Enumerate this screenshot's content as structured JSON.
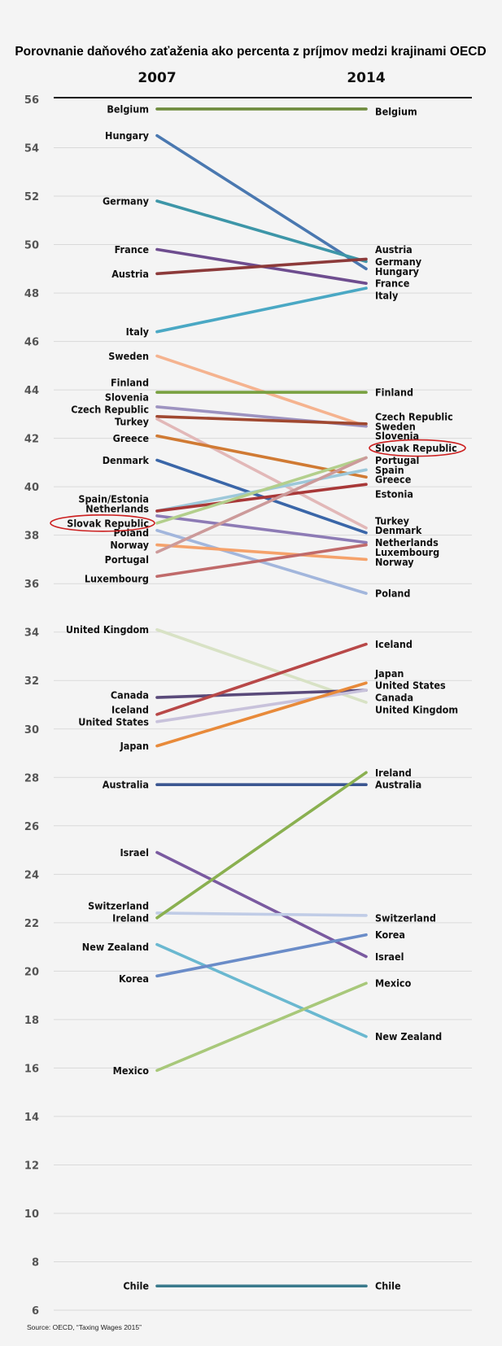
{
  "chart_data": {
    "type": "slope",
    "title": "Porovnanie daňového zaťaženia ako percenta z príjmov medzi krajinami OECD",
    "columns": [
      "2007",
      "2014"
    ],
    "ylim": [
      6,
      56
    ],
    "yticks": [
      56,
      54,
      52,
      50,
      48,
      46,
      44,
      42,
      40,
      38,
      36,
      34,
      32,
      30,
      28,
      26,
      24,
      22,
      20,
      18,
      16,
      14,
      12,
      10,
      8,
      6
    ],
    "grid": true,
    "source": "Source: OECD, “Taxing Wages 2015”",
    "highlight": "Slovak Republic",
    "series": [
      {
        "name": "Belgium",
        "values": [
          55.6,
          55.6
        ],
        "color": "#6e8b3d"
      },
      {
        "name": "Hungary",
        "values": [
          54.5,
          49.0
        ],
        "color": "#4a78b0"
      },
      {
        "name": "Germany",
        "values": [
          51.8,
          49.3
        ],
        "color": "#3d96a8"
      },
      {
        "name": "France",
        "values": [
          49.8,
          48.4
        ],
        "color": "#6e4d8f"
      },
      {
        "name": "Austria",
        "values": [
          48.8,
          49.4
        ],
        "color": "#8c3a3a"
      },
      {
        "name": "Italy",
        "values": [
          46.4,
          48.2
        ],
        "color": "#4aa8c4"
      },
      {
        "name": "Sweden",
        "values": [
          45.4,
          42.5
        ],
        "color": "#f5b38f"
      },
      {
        "name": "Finland",
        "values": [
          43.9,
          43.9
        ],
        "color": "#78a040"
      },
      {
        "name": "Slovenia",
        "values": [
          43.3,
          42.5
        ],
        "color": "#9d93c0"
      },
      {
        "name": "Czech Republic",
        "values": [
          42.9,
          42.6
        ],
        "color": "#a04830"
      },
      {
        "name": "Turkey",
        "values": [
          42.8,
          38.3
        ],
        "color": "#e2b8b8"
      },
      {
        "name": "Greece",
        "values": [
          42.1,
          40.4
        ],
        "color": "#d07a33"
      },
      {
        "name": "Denmark",
        "values": [
          41.1,
          38.1
        ],
        "color": "#3a66a8"
      },
      {
        "name": "Spain",
        "values": [
          39.0,
          40.7
        ],
        "color": "#9dc8da"
      },
      {
        "name": "Estonia",
        "values": [
          39.0,
          40.1
        ],
        "color": "#a83838"
      },
      {
        "name": "Netherlands",
        "values": [
          38.8,
          37.7
        ],
        "color": "#8d7bb5"
      },
      {
        "name": "Slovak Republic",
        "values": [
          38.5,
          41.2
        ],
        "color": "#b3cf8c"
      },
      {
        "name": "Poland",
        "values": [
          38.2,
          35.6
        ],
        "color": "#a2b6dc"
      },
      {
        "name": "Norway",
        "values": [
          37.6,
          37.0
        ],
        "color": "#f5a26b"
      },
      {
        "name": "Portugal",
        "values": [
          37.3,
          41.2
        ],
        "color": "#cc9a9a"
      },
      {
        "name": "Luxembourg",
        "values": [
          36.3,
          37.6
        ],
        "color": "#c06a6a"
      },
      {
        "name": "United Kingdom",
        "values": [
          34.1,
          31.1
        ],
        "color": "#d8e2c5"
      },
      {
        "name": "Canada",
        "values": [
          31.3,
          31.6
        ],
        "color": "#5a4a7a"
      },
      {
        "name": "Iceland",
        "values": [
          30.6,
          33.5
        ],
        "color": "#b84848"
      },
      {
        "name": "United States",
        "values": [
          30.3,
          31.6
        ],
        "color": "#c8c2db"
      },
      {
        "name": "Japan",
        "values": [
          29.3,
          31.9
        ],
        "color": "#e88a3a"
      },
      {
        "name": "Australia",
        "values": [
          27.7,
          27.7
        ],
        "color": "#3a5690"
      },
      {
        "name": "Israel",
        "values": [
          24.9,
          20.6
        ],
        "color": "#7a5aa0"
      },
      {
        "name": "Switzerland",
        "values": [
          22.4,
          22.3
        ],
        "color": "#c0cce6"
      },
      {
        "name": "Ireland",
        "values": [
          22.2,
          28.2
        ],
        "color": "#8ab050"
      },
      {
        "name": "New Zealand",
        "values": [
          21.1,
          17.3
        ],
        "color": "#6ab8d0"
      },
      {
        "name": "Korea",
        "values": [
          19.8,
          21.5
        ],
        "color": "#6a8cc8"
      },
      {
        "name": "Mexico",
        "values": [
          15.9,
          19.5
        ],
        "color": "#a8c87a"
      },
      {
        "name": "Chile",
        "values": [
          7.0,
          7.0
        ],
        "color": "#3a7a8c"
      }
    ],
    "left_labels": [
      {
        "text": "Belgium",
        "y": 55.6
      },
      {
        "text": "Hungary",
        "y": 54.5
      },
      {
        "text": "Germany",
        "y": 51.8
      },
      {
        "text": "France",
        "y": 49.8
      },
      {
        "text": "Austria",
        "y": 48.8
      },
      {
        "text": "Italy",
        "y": 46.4
      },
      {
        "text": "Sweden",
        "y": 45.4
      },
      {
        "text": "Finland",
        "y": 44.3
      },
      {
        "text": "Slovenia",
        "y": 43.7
      },
      {
        "text": "Czech Republic",
        "y": 43.2
      },
      {
        "text": "Turkey",
        "y": 42.7
      },
      {
        "text": "Greece",
        "y": 42.0
      },
      {
        "text": "Denmark",
        "y": 41.1
      },
      {
        "text": "Spain/Estonia",
        "y": 39.5
      },
      {
        "text": "Netherlands",
        "y": 39.1
      },
      {
        "text": "Slovak Republic",
        "y": 38.5
      },
      {
        "text": "Poland",
        "y": 38.1
      },
      {
        "text": "Norway",
        "y": 37.6
      },
      {
        "text": "Portugal",
        "y": 37.0
      },
      {
        "text": "Luxembourg",
        "y": 36.2
      },
      {
        "text": "United Kingdom",
        "y": 34.1
      },
      {
        "text": "Canada",
        "y": 31.4
      },
      {
        "text": "Iceland",
        "y": 30.8
      },
      {
        "text": "United States",
        "y": 30.3
      },
      {
        "text": "Japan",
        "y": 29.3
      },
      {
        "text": "Australia",
        "y": 27.7
      },
      {
        "text": "Israel",
        "y": 24.9
      },
      {
        "text": "Switzerland",
        "y": 22.7
      },
      {
        "text": "Ireland",
        "y": 22.2
      },
      {
        "text": "New Zealand",
        "y": 21.0
      },
      {
        "text": "Korea",
        "y": 19.7
      },
      {
        "text": "Mexico",
        "y": 15.9
      },
      {
        "text": "Chile",
        "y": 7.0
      }
    ],
    "right_labels": [
      {
        "text": "Belgium",
        "y": 55.5
      },
      {
        "text": "Austria",
        "y": 49.8
      },
      {
        "text": "Germany",
        "y": 49.3
      },
      {
        "text": "Hungary",
        "y": 48.9
      },
      {
        "text": "France",
        "y": 48.4
      },
      {
        "text": "Italy",
        "y": 47.9
      },
      {
        "text": "Finland",
        "y": 43.9
      },
      {
        "text": "Czech Republic",
        "y": 42.9
      },
      {
        "text": "Sweden",
        "y": 42.5
      },
      {
        "text": "Slovenia",
        "y": 42.1
      },
      {
        "text": "Slovak Republic",
        "y": 41.6
      },
      {
        "text": "Portugal",
        "y": 41.1
      },
      {
        "text": "Spain",
        "y": 40.7
      },
      {
        "text": "Greece",
        "y": 40.3
      },
      {
        "text": "Estonia",
        "y": 39.7
      },
      {
        "text": "Turkey",
        "y": 38.6
      },
      {
        "text": "Denmark",
        "y": 38.2
      },
      {
        "text": "Netherlands",
        "y": 37.7
      },
      {
        "text": "Luxembourg",
        "y": 37.3
      },
      {
        "text": "Norway",
        "y": 36.9
      },
      {
        "text": "Poland",
        "y": 35.6
      },
      {
        "text": "Iceland",
        "y": 33.5
      },
      {
        "text": "Japan",
        "y": 32.3
      },
      {
        "text": "United States",
        "y": 31.8
      },
      {
        "text": "Canada",
        "y": 31.3
      },
      {
        "text": "United Kingdom",
        "y": 30.8
      },
      {
        "text": "Ireland",
        "y": 28.2
      },
      {
        "text": "Australia",
        "y": 27.7
      },
      {
        "text": "Switzerland",
        "y": 22.2
      },
      {
        "text": "Korea",
        "y": 21.5
      },
      {
        "text": "Israel",
        "y": 20.6
      },
      {
        "text": "Mexico",
        "y": 19.5
      },
      {
        "text": "New Zealand",
        "y": 17.3
      },
      {
        "text": "Chile",
        "y": 7.0
      }
    ]
  }
}
